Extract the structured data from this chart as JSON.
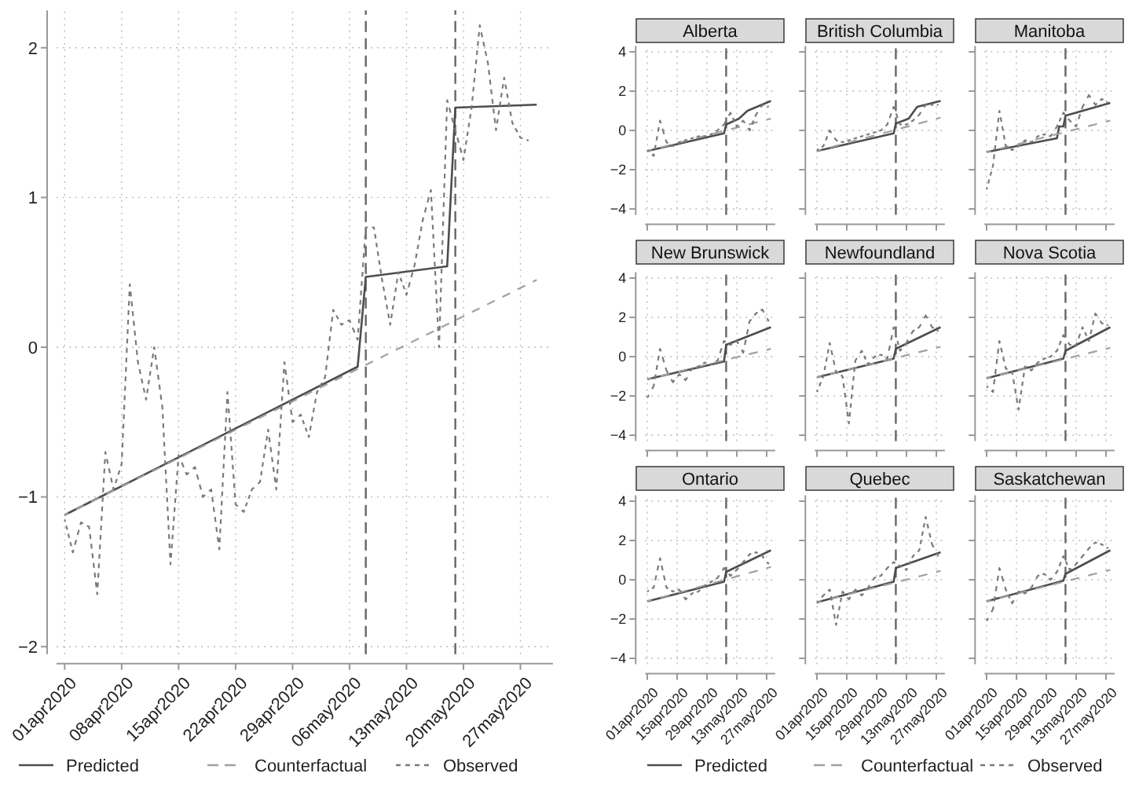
{
  "chart_data": [
    {
      "type": "line",
      "x": [
        "2020-04-01",
        "2020-04-02",
        "2020-04-03",
        "2020-04-04",
        "2020-04-05",
        "2020-04-06",
        "2020-04-07",
        "2020-04-08",
        "2020-04-09",
        "2020-04-10",
        "2020-04-11",
        "2020-04-12",
        "2020-04-13",
        "2020-04-14",
        "2020-04-15",
        "2020-04-16",
        "2020-04-17",
        "2020-04-18",
        "2020-04-19",
        "2020-04-20",
        "2020-04-21",
        "2020-04-22",
        "2020-04-23",
        "2020-04-24",
        "2020-04-25",
        "2020-04-26",
        "2020-04-27",
        "2020-04-28",
        "2020-04-29",
        "2020-04-30",
        "2020-05-01",
        "2020-05-02",
        "2020-05-03",
        "2020-05-04",
        "2020-05-05",
        "2020-05-06",
        "2020-05-07",
        "2020-05-08",
        "2020-05-09",
        "2020-05-10",
        "2020-05-11",
        "2020-05-12",
        "2020-05-13",
        "2020-05-14",
        "2020-05-15",
        "2020-05-16",
        "2020-05-17",
        "2020-05-18",
        "2020-05-19",
        "2020-05-20",
        "2020-05-21",
        "2020-05-22",
        "2020-05-23",
        "2020-05-24",
        "2020-05-25",
        "2020-05-26",
        "2020-05-27",
        "2020-05-28"
      ],
      "series": [
        {
          "name": "Predicted",
          "color": "#4d4d4d",
          "line_style": "solid",
          "x": [
            "2020-04-01",
            "2020-05-07",
            "2020-05-08",
            "2020-05-18",
            "2020-05-19",
            "2020-05-29"
          ],
          "values": [
            -1.12,
            -0.13,
            0.47,
            0.54,
            1.6,
            1.62
          ]
        },
        {
          "name": "Counterfactual",
          "color": "#a0a0a0",
          "line_style": "dashed",
          "x": [
            "2020-04-01",
            "2020-05-29"
          ],
          "values": [
            -1.12,
            0.45
          ]
        },
        {
          "name": "Observed",
          "color": "#7a7a7a",
          "line_style": "dotted",
          "values": [
            -1.15,
            -1.37,
            -1.17,
            -1.2,
            -1.65,
            -0.7,
            -0.95,
            -0.78,
            0.42,
            -0.1,
            -0.35,
            0.0,
            -0.4,
            -1.45,
            -0.72,
            -0.85,
            -0.8,
            -1.0,
            -0.95,
            -1.35,
            -0.3,
            -1.05,
            -1.1,
            -0.95,
            -0.9,
            -0.55,
            -0.95,
            -0.1,
            -0.5,
            -0.45,
            -0.6,
            -0.3,
            -0.2,
            0.25,
            0.15,
            0.18,
            0.05,
            0.8,
            0.8,
            0.45,
            0.15,
            0.5,
            0.35,
            0.55,
            0.85,
            1.05,
            0.0,
            1.65,
            1.45,
            1.25,
            1.6,
            2.15,
            1.9,
            1.45,
            1.8,
            1.5,
            1.4,
            1.38
          ]
        }
      ],
      "xlim": [
        "2020-03-31",
        "2020-05-31"
      ],
      "ylim": [
        -2.05,
        2.25
      ],
      "yticks": [
        -2,
        -1,
        0,
        1,
        2
      ],
      "xticks": [
        {
          "value": "2020-04-01",
          "label": "01apr2020"
        },
        {
          "value": "2020-04-08",
          "label": "08apr2020"
        },
        {
          "value": "2020-04-15",
          "label": "15apr2020"
        },
        {
          "value": "2020-04-22",
          "label": "22apr2020"
        },
        {
          "value": "2020-04-29",
          "label": "29apr2020"
        },
        {
          "value": "2020-05-06",
          "label": "06may2020"
        },
        {
          "value": "2020-05-13",
          "label": "13may2020"
        },
        {
          "value": "2020-05-20",
          "label": "20may2020"
        },
        {
          "value": "2020-05-27",
          "label": "27may2020"
        }
      ],
      "ref_lines": [
        {
          "axis": "x",
          "value": "2020-05-08",
          "color": "#666666",
          "line_style": "dashed"
        },
        {
          "axis": "x",
          "value": "2020-05-19",
          "color": "#666666",
          "line_style": "dashed"
        }
      ],
      "grid": true,
      "legend": "bottom"
    },
    {
      "type": "line",
      "title": "Alberta",
      "tick_labels": "y",
      "x": [
        "2020-04-01",
        "2020-04-04",
        "2020-04-07",
        "2020-04-10",
        "2020-04-13",
        "2020-04-16",
        "2020-04-19",
        "2020-04-22",
        "2020-04-25",
        "2020-04-28",
        "2020-05-01",
        "2020-05-04",
        "2020-05-07",
        "2020-05-10",
        "2020-05-13",
        "2020-05-16",
        "2020-05-19",
        "2020-05-22",
        "2020-05-25",
        "2020-05-28"
      ],
      "series": [
        {
          "color": "#4d4d4d",
          "line_style": "solid",
          "x": [
            "2020-04-01",
            "2020-05-07",
            "2020-05-08",
            "2020-05-14",
            "2020-05-18",
            "2020-05-29"
          ],
          "values": [
            -1.05,
            -0.15,
            0.3,
            0.6,
            1.0,
            1.5
          ]
        },
        {
          "color": "#a0a0a0",
          "line_style": "dashed",
          "x": [
            "2020-04-01",
            "2020-05-29"
          ],
          "values": [
            -1.05,
            0.6
          ]
        },
        {
          "color": "#7a7a7a",
          "line_style": "dotted",
          "values": [
            -1.0,
            -1.3,
            0.5,
            -0.6,
            -0.8,
            -0.6,
            -0.5,
            -0.4,
            -0.3,
            -0.3,
            -0.2,
            0.0,
            0.3,
            0.9,
            0.2,
            0.5,
            0.0,
            0.8,
            1.3,
            1.2
          ]
        }
      ],
      "xlim": [
        "2020-03-31",
        "2020-05-31"
      ],
      "ylim": [
        -4.3,
        4.3
      ],
      "yticks": [
        -4,
        -2,
        0,
        2,
        4
      ],
      "xticks": [
        {
          "value": "2020-04-01",
          "label": null
        },
        {
          "value": "2020-04-15",
          "label": null
        },
        {
          "value": "2020-04-29",
          "label": null
        },
        {
          "value": "2020-05-13",
          "label": null
        },
        {
          "value": "2020-05-27",
          "label": null
        }
      ],
      "ref_lines": [
        {
          "axis": "x",
          "value": "2020-05-08",
          "color": "#666666",
          "line_style": "dashed"
        }
      ],
      "grid": true
    },
    {
      "type": "line",
      "title": "British Columbia",
      "tick_labels": false,
      "x": [
        "2020-04-01",
        "2020-04-04",
        "2020-04-07",
        "2020-04-10",
        "2020-04-13",
        "2020-04-16",
        "2020-04-19",
        "2020-04-22",
        "2020-04-25",
        "2020-04-28",
        "2020-05-01",
        "2020-05-04",
        "2020-05-07",
        "2020-05-10",
        "2020-05-13",
        "2020-05-16",
        "2020-05-19",
        "2020-05-22",
        "2020-05-25",
        "2020-05-28"
      ],
      "series": [
        {
          "color": "#4d4d4d",
          "line_style": "solid",
          "x": [
            "2020-04-01",
            "2020-05-07",
            "2020-05-08",
            "2020-05-14",
            "2020-05-18",
            "2020-05-29"
          ],
          "values": [
            -1.05,
            -0.15,
            0.35,
            0.6,
            1.2,
            1.5
          ]
        },
        {
          "color": "#a0a0a0",
          "line_style": "dashed",
          "x": [
            "2020-04-01",
            "2020-05-29"
          ],
          "values": [
            -1.05,
            0.65
          ]
        },
        {
          "color": "#7a7a7a",
          "line_style": "dotted",
          "values": [
            -1.0,
            -0.8,
            0.0,
            -0.5,
            -0.6,
            -0.5,
            -0.4,
            -0.3,
            -0.2,
            -0.1,
            0.0,
            0.3,
            1.2,
            0.3,
            0.3,
            0.5,
            0.8,
            1.3,
            1.3,
            1.3
          ]
        }
      ],
      "xlim": [
        "2020-03-31",
        "2020-05-31"
      ],
      "ylim": [
        -4.3,
        4.3
      ],
      "yticks": [
        -4,
        -2,
        0,
        2,
        4
      ],
      "xticks": [
        {
          "value": "2020-04-01",
          "label": null
        },
        {
          "value": "2020-04-15",
          "label": null
        },
        {
          "value": "2020-04-29",
          "label": null
        },
        {
          "value": "2020-05-13",
          "label": null
        },
        {
          "value": "2020-05-27",
          "label": null
        }
      ],
      "ref_lines": [
        {
          "axis": "x",
          "value": "2020-05-08",
          "color": "#666666",
          "line_style": "dashed"
        }
      ],
      "grid": true
    },
    {
      "type": "line",
      "title": "Manitoba",
      "tick_labels": false,
      "x": [
        "2020-04-01",
        "2020-04-04",
        "2020-04-07",
        "2020-04-10",
        "2020-04-13",
        "2020-04-16",
        "2020-04-19",
        "2020-04-22",
        "2020-04-25",
        "2020-04-28",
        "2020-05-01",
        "2020-05-04",
        "2020-05-07",
        "2020-05-10",
        "2020-05-13",
        "2020-05-16",
        "2020-05-19",
        "2020-05-22",
        "2020-05-25",
        "2020-05-28"
      ],
      "series": [
        {
          "color": "#4d4d4d",
          "line_style": "solid",
          "x": [
            "2020-04-01",
            "2020-05-04",
            "2020-05-05",
            "2020-05-07",
            "2020-05-08",
            "2020-05-29"
          ],
          "values": [
            -1.1,
            -0.4,
            0.2,
            0.2,
            0.75,
            1.4
          ]
        },
        {
          "color": "#a0a0a0",
          "line_style": "dashed",
          "x": [
            "2020-04-01",
            "2020-05-29"
          ],
          "values": [
            -1.1,
            0.5
          ]
        },
        {
          "color": "#7a7a7a",
          "line_style": "dotted",
          "values": [
            -3.0,
            -1.8,
            1.0,
            -0.8,
            -1.0,
            -0.8,
            -0.5,
            -0.6,
            -0.3,
            -0.2,
            -0.3,
            0.2,
            0.9,
            0.5,
            0.2,
            1.2,
            1.8,
            1.3,
            1.6,
            1.4
          ]
        }
      ],
      "xlim": [
        "2020-03-31",
        "2020-05-31"
      ],
      "ylim": [
        -4.3,
        4.3
      ],
      "yticks": [
        -4,
        -2,
        0,
        2,
        4
      ],
      "xticks": [
        {
          "value": "2020-04-01",
          "label": null
        },
        {
          "value": "2020-04-15",
          "label": null
        },
        {
          "value": "2020-04-29",
          "label": null
        },
        {
          "value": "2020-05-13",
          "label": null
        },
        {
          "value": "2020-05-27",
          "label": null
        }
      ],
      "ref_lines": [
        {
          "axis": "x",
          "value": "2020-05-08",
          "color": "#666666",
          "line_style": "dashed"
        }
      ],
      "grid": true
    },
    {
      "type": "line",
      "title": "New Brunswick",
      "tick_labels": "y",
      "x": [
        "2020-04-01",
        "2020-04-04",
        "2020-04-07",
        "2020-04-10",
        "2020-04-13",
        "2020-04-16",
        "2020-04-19",
        "2020-04-22",
        "2020-04-25",
        "2020-04-28",
        "2020-05-01",
        "2020-05-04",
        "2020-05-07",
        "2020-05-10",
        "2020-05-13",
        "2020-05-16",
        "2020-05-19",
        "2020-05-22",
        "2020-05-25",
        "2020-05-28"
      ],
      "series": [
        {
          "color": "#4d4d4d",
          "line_style": "solid",
          "x": [
            "2020-04-01",
            "2020-05-07",
            "2020-05-08",
            "2020-05-29"
          ],
          "values": [
            -1.15,
            -0.25,
            0.6,
            1.5
          ]
        },
        {
          "color": "#a0a0a0",
          "line_style": "dashed",
          "x": [
            "2020-04-01",
            "2020-05-29"
          ],
          "values": [
            -1.15,
            0.4
          ]
        },
        {
          "color": "#7a7a7a",
          "line_style": "dotted",
          "values": [
            -2.1,
            -1.5,
            0.4,
            -0.7,
            -1.3,
            -0.9,
            -1.2,
            -0.6,
            -0.5,
            -0.3,
            -0.4,
            -0.2,
            0.8,
            0.6,
            0.8,
            0.2,
            1.8,
            2.2,
            2.4,
            1.8
          ]
        }
      ],
      "xlim": [
        "2020-03-31",
        "2020-05-31"
      ],
      "ylim": [
        -4.3,
        4.3
      ],
      "yticks": [
        -4,
        -2,
        0,
        2,
        4
      ],
      "xticks": [
        {
          "value": "2020-04-01",
          "label": null
        },
        {
          "value": "2020-04-15",
          "label": null
        },
        {
          "value": "2020-04-29",
          "label": null
        },
        {
          "value": "2020-05-13",
          "label": null
        },
        {
          "value": "2020-05-27",
          "label": null
        }
      ],
      "ref_lines": [
        {
          "axis": "x",
          "value": "2020-05-08",
          "color": "#666666",
          "line_style": "dashed"
        }
      ],
      "grid": true
    },
    {
      "type": "line",
      "title": "Newfoundland",
      "tick_labels": false,
      "x": [
        "2020-04-01",
        "2020-04-04",
        "2020-04-07",
        "2020-04-10",
        "2020-04-13",
        "2020-04-16",
        "2020-04-19",
        "2020-04-22",
        "2020-04-25",
        "2020-04-28",
        "2020-05-01",
        "2020-05-04",
        "2020-05-07",
        "2020-05-10",
        "2020-05-13",
        "2020-05-16",
        "2020-05-19",
        "2020-05-22",
        "2020-05-25",
        "2020-05-28"
      ],
      "series": [
        {
          "color": "#4d4d4d",
          "line_style": "solid",
          "x": [
            "2020-04-01",
            "2020-05-07",
            "2020-05-08",
            "2020-05-29"
          ],
          "values": [
            -1.05,
            -0.1,
            0.4,
            1.5
          ]
        },
        {
          "color": "#a0a0a0",
          "line_style": "dashed",
          "x": [
            "2020-04-01",
            "2020-05-29"
          ],
          "values": [
            -1.05,
            0.5
          ]
        },
        {
          "color": "#7a7a7a",
          "line_style": "dotted",
          "values": [
            -1.8,
            -1.0,
            0.7,
            -0.8,
            -1.0,
            -3.4,
            -0.2,
            0.3,
            -0.4,
            0.0,
            0.1,
            -0.1,
            1.5,
            0.3,
            0.7,
            1.3,
            1.5,
            2.1,
            1.5,
            1.3
          ]
        }
      ],
      "xlim": [
        "2020-03-31",
        "2020-05-31"
      ],
      "ylim": [
        -4.3,
        4.3
      ],
      "yticks": [
        -4,
        -2,
        0,
        2,
        4
      ],
      "xticks": [
        {
          "value": "2020-04-01",
          "label": null
        },
        {
          "value": "2020-04-15",
          "label": null
        },
        {
          "value": "2020-04-29",
          "label": null
        },
        {
          "value": "2020-05-13",
          "label": null
        },
        {
          "value": "2020-05-27",
          "label": null
        }
      ],
      "ref_lines": [
        {
          "axis": "x",
          "value": "2020-05-08",
          "color": "#666666",
          "line_style": "dashed"
        }
      ],
      "grid": true
    },
    {
      "type": "line",
      "title": "Nova Scotia",
      "tick_labels": false,
      "x": [
        "2020-04-01",
        "2020-04-04",
        "2020-04-07",
        "2020-04-10",
        "2020-04-13",
        "2020-04-16",
        "2020-04-19",
        "2020-04-22",
        "2020-04-25",
        "2020-04-28",
        "2020-05-01",
        "2020-05-04",
        "2020-05-07",
        "2020-05-10",
        "2020-05-13",
        "2020-05-16",
        "2020-05-19",
        "2020-05-22",
        "2020-05-25",
        "2020-05-28"
      ],
      "series": [
        {
          "color": "#4d4d4d",
          "line_style": "solid",
          "x": [
            "2020-04-01",
            "2020-05-07",
            "2020-05-08",
            "2020-05-29"
          ],
          "values": [
            -1.1,
            -0.1,
            0.3,
            1.5
          ]
        },
        {
          "color": "#a0a0a0",
          "line_style": "dashed",
          "x": [
            "2020-04-01",
            "2020-05-29"
          ],
          "values": [
            -1.1,
            0.45
          ]
        },
        {
          "color": "#7a7a7a",
          "line_style": "dotted",
          "values": [
            -1.5,
            -1.8,
            0.8,
            -0.6,
            -0.8,
            -2.7,
            -0.5,
            -0.7,
            -0.3,
            -0.1,
            0.0,
            0.3,
            1.1,
            0.6,
            0.6,
            1.5,
            0.8,
            2.2,
            1.7,
            1.6
          ]
        }
      ],
      "xlim": [
        "2020-03-31",
        "2020-05-31"
      ],
      "ylim": [
        -4.3,
        4.3
      ],
      "yticks": [
        -4,
        -2,
        0,
        2,
        4
      ],
      "xticks": [
        {
          "value": "2020-04-01",
          "label": null
        },
        {
          "value": "2020-04-15",
          "label": null
        },
        {
          "value": "2020-04-29",
          "label": null
        },
        {
          "value": "2020-05-13",
          "label": null
        },
        {
          "value": "2020-05-27",
          "label": null
        }
      ],
      "ref_lines": [
        {
          "axis": "x",
          "value": "2020-05-08",
          "color": "#666666",
          "line_style": "dashed"
        }
      ],
      "grid": true
    },
    {
      "type": "line",
      "title": "Ontario",
      "x": [
        "2020-04-01",
        "2020-04-04",
        "2020-04-07",
        "2020-04-10",
        "2020-04-13",
        "2020-04-16",
        "2020-04-19",
        "2020-04-22",
        "2020-04-25",
        "2020-04-28",
        "2020-05-01",
        "2020-05-04",
        "2020-05-07",
        "2020-05-10",
        "2020-05-13",
        "2020-05-16",
        "2020-05-19",
        "2020-05-22",
        "2020-05-25",
        "2020-05-28"
      ],
      "series": [
        {
          "color": "#4d4d4d",
          "line_style": "solid",
          "x": [
            "2020-04-01",
            "2020-05-07",
            "2020-05-08",
            "2020-05-29"
          ],
          "values": [
            -1.1,
            -0.1,
            0.4,
            1.5
          ]
        },
        {
          "color": "#a0a0a0",
          "line_style": "dashed",
          "x": [
            "2020-04-01",
            "2020-05-29"
          ],
          "values": [
            -1.1,
            0.65
          ]
        },
        {
          "color": "#7a7a7a",
          "line_style": "dotted",
          "values": [
            -0.6,
            -0.4,
            1.1,
            -0.4,
            -0.6,
            -0.5,
            -1.0,
            -0.7,
            -0.6,
            -0.3,
            -0.1,
            0.1,
            0.6,
            0.2,
            0.5,
            0.9,
            1.3,
            1.4,
            1.2,
            0.8
          ]
        }
      ],
      "xlim": [
        "2020-03-31",
        "2020-05-31"
      ],
      "ylim": [
        -4.3,
        4.3
      ],
      "yticks": [
        -4,
        -2,
        0,
        2,
        4
      ],
      "xticks": [
        {
          "value": "2020-04-01",
          "label": "01apr2020"
        },
        {
          "value": "2020-04-15",
          "label": "15apr2020"
        },
        {
          "value": "2020-04-29",
          "label": "29apr2020"
        },
        {
          "value": "2020-05-13",
          "label": "13may2020"
        },
        {
          "value": "2020-05-27",
          "label": "27may2020"
        }
      ],
      "ref_lines": [
        {
          "axis": "x",
          "value": "2020-05-08",
          "color": "#666666",
          "line_style": "dashed"
        }
      ],
      "grid": true
    },
    {
      "type": "line",
      "title": "Quebec",
      "tick_labels": "x",
      "legend": "bottom",
      "x": [
        "2020-04-01",
        "2020-04-04",
        "2020-04-07",
        "2020-04-10",
        "2020-04-13",
        "2020-04-16",
        "2020-04-19",
        "2020-04-22",
        "2020-04-25",
        "2020-04-28",
        "2020-05-01",
        "2020-05-04",
        "2020-05-07",
        "2020-05-10",
        "2020-05-13",
        "2020-05-16",
        "2020-05-19",
        "2020-05-22",
        "2020-05-25",
        "2020-05-28"
      ],
      "series": [
        {
          "name": "Predicted",
          "color": "#4d4d4d",
          "line_style": "solid",
          "x": [
            "2020-04-01",
            "2020-05-07",
            "2020-05-08",
            "2020-05-29"
          ],
          "values": [
            -1.15,
            -0.1,
            0.6,
            1.4
          ]
        },
        {
          "name": "Counterfactual",
          "color": "#a0a0a0",
          "line_style": "dashed",
          "x": [
            "2020-04-01",
            "2020-05-29"
          ],
          "values": [
            -1.15,
            0.45
          ]
        },
        {
          "name": "Observed",
          "color": "#7a7a7a",
          "line_style": "dotted",
          "values": [
            -1.2,
            -0.8,
            -0.5,
            -2.3,
            -0.6,
            -1.0,
            -0.5,
            -0.8,
            -0.4,
            0.1,
            0.2,
            0.6,
            0.9,
            0.7,
            0.5,
            1.2,
            1.5,
            3.2,
            1.8,
            1.2
          ]
        }
      ],
      "xlim": [
        "2020-03-31",
        "2020-05-31"
      ],
      "ylim": [
        -4.3,
        4.3
      ],
      "yticks": [
        -4,
        -2,
        0,
        2,
        4
      ],
      "xticks": [
        {
          "value": "2020-04-01",
          "label": "01apr2020"
        },
        {
          "value": "2020-04-15",
          "label": "15apr2020"
        },
        {
          "value": "2020-04-29",
          "label": "29apr2020"
        },
        {
          "value": "2020-05-13",
          "label": "13may2020"
        },
        {
          "value": "2020-05-27",
          "label": "27may2020"
        }
      ],
      "ref_lines": [
        {
          "axis": "x",
          "value": "2020-05-08",
          "color": "#666666",
          "line_style": "dashed"
        }
      ],
      "grid": true
    },
    {
      "type": "line",
      "title": "Saskatchewan",
      "tick_labels": "x",
      "x": [
        "2020-04-01",
        "2020-04-04",
        "2020-04-07",
        "2020-04-10",
        "2020-04-13",
        "2020-04-16",
        "2020-04-19",
        "2020-04-22",
        "2020-04-25",
        "2020-04-28",
        "2020-05-01",
        "2020-05-04",
        "2020-05-07",
        "2020-05-10",
        "2020-05-13",
        "2020-05-16",
        "2020-05-19",
        "2020-05-22",
        "2020-05-25",
        "2020-05-28"
      ],
      "series": [
        {
          "color": "#4d4d4d",
          "line_style": "solid",
          "x": [
            "2020-04-01",
            "2020-05-07",
            "2020-05-08",
            "2020-05-29"
          ],
          "values": [
            -1.1,
            -0.05,
            0.3,
            1.5
          ]
        },
        {
          "color": "#a0a0a0",
          "line_style": "dashed",
          "x": [
            "2020-04-01",
            "2020-05-29"
          ],
          "values": [
            -1.1,
            0.5
          ]
        },
        {
          "color": "#7a7a7a",
          "line_style": "dotted",
          "values": [
            -2.1,
            -1.5,
            0.6,
            -0.5,
            -1.2,
            -0.6,
            -0.7,
            -0.4,
            0.2,
            0.3,
            0.0,
            0.4,
            1.2,
            0.5,
            0.8,
            1.2,
            1.6,
            1.9,
            1.8,
            1.6
          ]
        }
      ],
      "xlim": [
        "2020-03-31",
        "2020-05-31"
      ],
      "ylim": [
        -4.3,
        4.3
      ],
      "yticks": [
        -4,
        -2,
        0,
        2,
        4
      ],
      "xticks": [
        {
          "value": "2020-04-01",
          "label": "01apr2020"
        },
        {
          "value": "2020-04-15",
          "label": "15apr2020"
        },
        {
          "value": "2020-04-29",
          "label": "29apr2020"
        },
        {
          "value": "2020-05-13",
          "label": "13may2020"
        },
        {
          "value": "2020-05-27",
          "label": "27may2020"
        }
      ],
      "ref_lines": [
        {
          "axis": "x",
          "value": "2020-05-08",
          "color": "#666666",
          "line_style": "dashed"
        }
      ],
      "grid": true
    }
  ]
}
